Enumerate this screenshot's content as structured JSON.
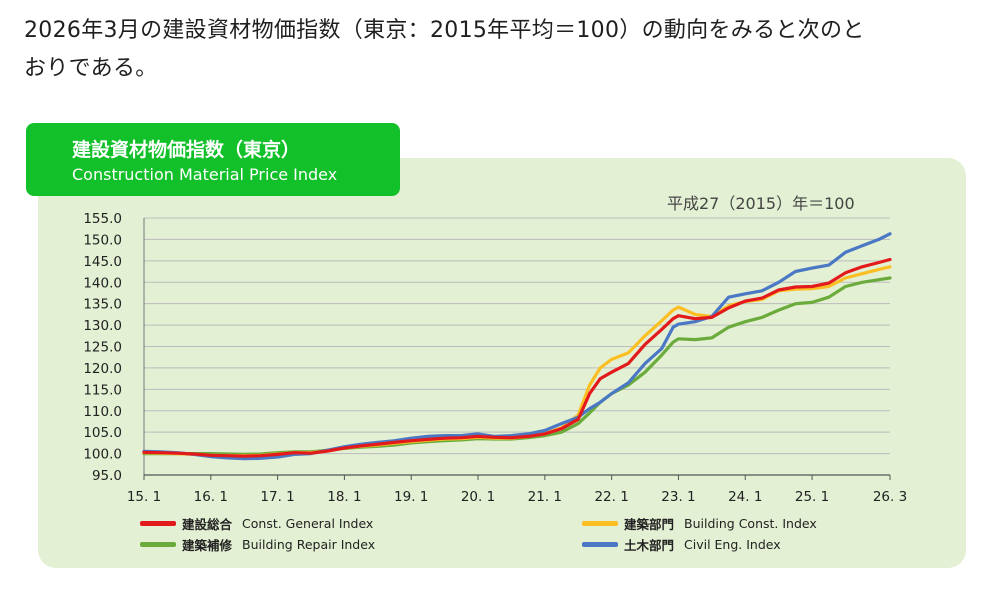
{
  "intro": {
    "line1": "2026年3月の建設資材物価指数（東京：2015年平均＝100）の動向をみると次のと",
    "line2": "おりである。"
  },
  "badge": {
    "title_jp": "建設資材物価指数（東京）",
    "title_en": "Construction Material Price Index"
  },
  "colors": {
    "panel_bg": "#e3f0d3",
    "badge_bg": "#12c02a",
    "general": "#e31a1c",
    "building": "#fbbf24",
    "repair": "#6aab3c",
    "civil": "#4a78c4",
    "grid": "#bcbcbc"
  },
  "chart_data": {
    "type": "line",
    "title": "建設資材物価指数（東京）",
    "subtitle": "Construction Material Price Index",
    "base_note": "平成27（2015）年＝100",
    "ylim": [
      95,
      155
    ],
    "yticks": [
      "155.0",
      "150.0",
      "145.0",
      "140.0",
      "135.0",
      "130.0",
      "125.0",
      "120.0",
      "115.0",
      "110.0",
      "105.0",
      "100.0",
      "95.0"
    ],
    "xlim": [
      2015.0,
      2026.1667
    ],
    "xticks": [
      {
        "label": "15. 1",
        "x": 2015.0
      },
      {
        "label": "16. 1",
        "x": 2016.0
      },
      {
        "label": "17. 1",
        "x": 2017.0
      },
      {
        "label": "18. 1",
        "x": 2018.0
      },
      {
        "label": "19. 1",
        "x": 2019.0
      },
      {
        "label": "20. 1",
        "x": 2020.0
      },
      {
        "label": "21. 1",
        "x": 2021.0
      },
      {
        "label": "22. 1",
        "x": 2022.0
      },
      {
        "label": "23. 1",
        "x": 2023.0
      },
      {
        "label": "24. 1",
        "x": 2024.0
      },
      {
        "label": "25. 1",
        "x": 2025.0
      },
      {
        "label": "26. 3",
        "x": 2026.1667
      }
    ],
    "grid": true,
    "legend_position": "bottom",
    "series": [
      {
        "key": "general",
        "name_jp": "建設総合",
        "name": "Const. General  Index",
        "points": [
          [
            2015.0,
            100.3
          ],
          [
            2015.25,
            100.2
          ],
          [
            2015.5,
            100.1
          ],
          [
            2015.75,
            99.9
          ],
          [
            2016.0,
            99.6
          ],
          [
            2016.25,
            99.5
          ],
          [
            2016.5,
            99.4
          ],
          [
            2016.75,
            99.5
          ],
          [
            2017.0,
            99.8
          ],
          [
            2017.25,
            100.2
          ],
          [
            2017.5,
            100.1
          ],
          [
            2017.75,
            100.6
          ],
          [
            2018.0,
            101.3
          ],
          [
            2018.25,
            101.8
          ],
          [
            2018.5,
            102.2
          ],
          [
            2018.75,
            102.6
          ],
          [
            2019.0,
            103.0
          ],
          [
            2019.25,
            103.3
          ],
          [
            2019.5,
            103.6
          ],
          [
            2019.75,
            103.7
          ],
          [
            2020.0,
            104.0
          ],
          [
            2020.25,
            103.8
          ],
          [
            2020.5,
            103.7
          ],
          [
            2020.75,
            104.0
          ],
          [
            2021.0,
            104.6
          ],
          [
            2021.25,
            105.8
          ],
          [
            2021.5,
            108.0
          ],
          [
            2021.67,
            114.0
          ],
          [
            2021.83,
            117.5
          ],
          [
            2022.0,
            119.0
          ],
          [
            2022.25,
            121.0
          ],
          [
            2022.5,
            125.5
          ],
          [
            2022.75,
            129.0
          ],
          [
            2022.92,
            131.5
          ],
          [
            2023.0,
            132.2
          ],
          [
            2023.25,
            131.5
          ],
          [
            2023.5,
            131.8
          ],
          [
            2023.75,
            134.0
          ],
          [
            2024.0,
            135.6
          ],
          [
            2024.25,
            136.3
          ],
          [
            2024.5,
            138.2
          ],
          [
            2024.75,
            138.9
          ],
          [
            2025.0,
            139.0
          ],
          [
            2025.25,
            139.8
          ],
          [
            2025.5,
            142.2
          ],
          [
            2025.75,
            143.6
          ],
          [
            2026.0,
            144.6
          ],
          [
            2026.1667,
            145.3
          ]
        ]
      },
      {
        "key": "building",
        "name_jp": "建築部門",
        "name": "Building Const. Index",
        "points": [
          [
            2015.0,
            100.2
          ],
          [
            2015.25,
            100.1
          ],
          [
            2015.5,
            100.0
          ],
          [
            2015.75,
            99.8
          ],
          [
            2016.0,
            99.6
          ],
          [
            2016.25,
            99.5
          ],
          [
            2016.5,
            99.5
          ],
          [
            2016.75,
            99.6
          ],
          [
            2017.0,
            99.9
          ],
          [
            2017.25,
            100.2
          ],
          [
            2017.5,
            100.2
          ],
          [
            2017.75,
            100.7
          ],
          [
            2018.0,
            101.3
          ],
          [
            2018.25,
            101.7
          ],
          [
            2018.5,
            102.0
          ],
          [
            2018.75,
            102.4
          ],
          [
            2019.0,
            102.8
          ],
          [
            2019.25,
            103.1
          ],
          [
            2019.5,
            103.4
          ],
          [
            2019.75,
            103.5
          ],
          [
            2020.0,
            103.8
          ],
          [
            2020.25,
            103.6
          ],
          [
            2020.5,
            103.6
          ],
          [
            2020.75,
            104.0
          ],
          [
            2021.0,
            104.6
          ],
          [
            2021.25,
            106.0
          ],
          [
            2021.5,
            109.0
          ],
          [
            2021.67,
            116.0
          ],
          [
            2021.83,
            120.0
          ],
          [
            2022.0,
            122.0
          ],
          [
            2022.25,
            123.5
          ],
          [
            2022.5,
            127.5
          ],
          [
            2022.75,
            131.0
          ],
          [
            2022.92,
            133.5
          ],
          [
            2023.0,
            134.2
          ],
          [
            2023.25,
            132.5
          ],
          [
            2023.5,
            132.0
          ],
          [
            2023.75,
            134.5
          ],
          [
            2024.0,
            135.5
          ],
          [
            2024.25,
            136.0
          ],
          [
            2024.5,
            138.0
          ],
          [
            2024.75,
            138.4
          ],
          [
            2025.0,
            138.5
          ],
          [
            2025.25,
            139.0
          ],
          [
            2025.5,
            141.0
          ],
          [
            2025.75,
            142.0
          ],
          [
            2026.0,
            143.0
          ],
          [
            2026.1667,
            143.6
          ]
        ]
      },
      {
        "key": "repair",
        "name_jp": "建築補修",
        "name": "Building Repair Index",
        "points": [
          [
            2015.0,
            100.0
          ],
          [
            2015.25,
            100.0
          ],
          [
            2015.5,
            100.0
          ],
          [
            2015.75,
            100.0
          ],
          [
            2016.0,
            100.0
          ],
          [
            2016.25,
            99.9
          ],
          [
            2016.5,
            99.8
          ],
          [
            2016.75,
            99.9
          ],
          [
            2017.0,
            100.2
          ],
          [
            2017.25,
            100.4
          ],
          [
            2017.5,
            100.4
          ],
          [
            2017.75,
            100.8
          ],
          [
            2018.0,
            101.2
          ],
          [
            2018.25,
            101.5
          ],
          [
            2018.5,
            101.7
          ],
          [
            2018.75,
            102.0
          ],
          [
            2019.0,
            102.5
          ],
          [
            2019.25,
            102.8
          ],
          [
            2019.5,
            103.0
          ],
          [
            2019.75,
            103.2
          ],
          [
            2020.0,
            103.5
          ],
          [
            2020.25,
            103.4
          ],
          [
            2020.5,
            103.4
          ],
          [
            2020.75,
            103.7
          ],
          [
            2021.0,
            104.2
          ],
          [
            2021.25,
            105.0
          ],
          [
            2021.5,
            107.0
          ],
          [
            2021.67,
            109.5
          ],
          [
            2021.83,
            112.0
          ],
          [
            2022.0,
            114.0
          ],
          [
            2022.25,
            116.0
          ],
          [
            2022.5,
            119.0
          ],
          [
            2022.75,
            123.0
          ],
          [
            2022.92,
            126.0
          ],
          [
            2023.0,
            126.8
          ],
          [
            2023.25,
            126.6
          ],
          [
            2023.5,
            127.0
          ],
          [
            2023.75,
            129.5
          ],
          [
            2024.0,
            130.8
          ],
          [
            2024.25,
            131.8
          ],
          [
            2024.5,
            133.5
          ],
          [
            2024.75,
            135.0
          ],
          [
            2025.0,
            135.3
          ],
          [
            2025.25,
            136.5
          ],
          [
            2025.5,
            139.0
          ],
          [
            2025.75,
            140.0
          ],
          [
            2026.0,
            140.6
          ],
          [
            2026.1667,
            141.0
          ]
        ]
      },
      {
        "key": "civil",
        "name_jp": "土木部門",
        "name": "Civil Eng. Index",
        "points": [
          [
            2015.0,
            100.5
          ],
          [
            2015.25,
            100.4
          ],
          [
            2015.5,
            100.2
          ],
          [
            2015.75,
            99.8
          ],
          [
            2016.0,
            99.3
          ],
          [
            2016.25,
            99.0
          ],
          [
            2016.5,
            98.8
          ],
          [
            2016.75,
            98.9
          ],
          [
            2017.0,
            99.2
          ],
          [
            2017.25,
            99.8
          ],
          [
            2017.5,
            100.0
          ],
          [
            2017.75,
            100.8
          ],
          [
            2018.0,
            101.6
          ],
          [
            2018.25,
            102.2
          ],
          [
            2018.5,
            102.6
          ],
          [
            2018.75,
            103.0
          ],
          [
            2019.0,
            103.6
          ],
          [
            2019.25,
            104.0
          ],
          [
            2019.5,
            104.2
          ],
          [
            2019.75,
            104.2
          ],
          [
            2020.0,
            104.6
          ],
          [
            2020.25,
            104.0
          ],
          [
            2020.5,
            104.2
          ],
          [
            2020.75,
            104.6
          ],
          [
            2021.0,
            105.4
          ],
          [
            2021.25,
            107.0
          ],
          [
            2021.5,
            108.5
          ],
          [
            2021.67,
            110.5
          ],
          [
            2021.83,
            112.0
          ],
          [
            2022.0,
            114.0
          ],
          [
            2022.25,
            116.5
          ],
          [
            2022.5,
            121.0
          ],
          [
            2022.75,
            124.5
          ],
          [
            2022.92,
            129.5
          ],
          [
            2023.0,
            130.2
          ],
          [
            2023.25,
            130.8
          ],
          [
            2023.5,
            132.0
          ],
          [
            2023.75,
            136.5
          ],
          [
            2024.0,
            137.3
          ],
          [
            2024.25,
            138.0
          ],
          [
            2024.5,
            140.0
          ],
          [
            2024.75,
            142.5
          ],
          [
            2025.0,
            143.3
          ],
          [
            2025.25,
            144.0
          ],
          [
            2025.5,
            147.0
          ],
          [
            2025.75,
            148.5
          ],
          [
            2026.0,
            150.0
          ],
          [
            2026.1667,
            151.3
          ]
        ]
      }
    ]
  }
}
